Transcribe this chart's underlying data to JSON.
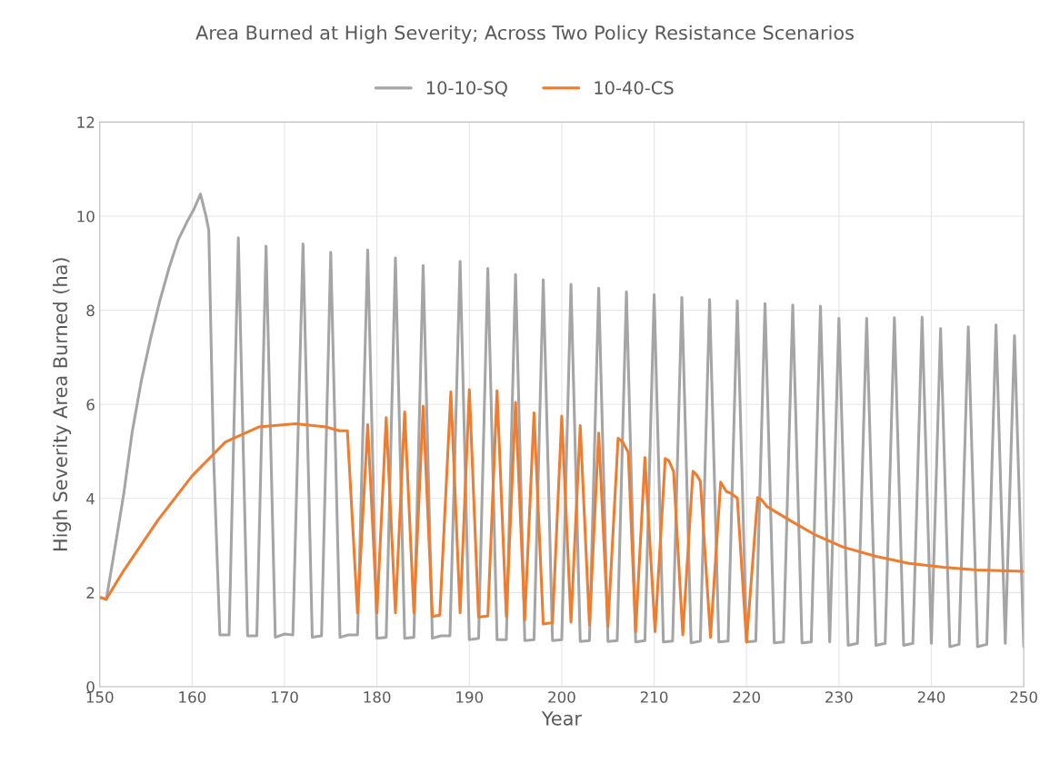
{
  "chart_data": {
    "type": "line",
    "title": "Area Burned at High Severity; Across Two Policy Resistance Scenarios",
    "xlabel": "Year",
    "ylabel": "High Severity Area Burned (ha)",
    "xlim": [
      150,
      250
    ],
    "xticks": [
      150,
      160,
      170,
      180,
      190,
      200,
      210,
      220,
      230,
      240,
      250
    ],
    "ylim": [
      0,
      12
    ],
    "yticks": [
      0,
      2,
      4,
      6,
      8,
      10,
      12
    ],
    "grid": true,
    "legend": "top",
    "marker": "none",
    "line_style": "solid",
    "series": [
      {
        "name": "10-10-SQ",
        "color": "#a5a5a5",
        "x": [
          150,
          150.7,
          151.6,
          152.6,
          153.5,
          154.5,
          155.5,
          156.5,
          157.5,
          158.5,
          159.5,
          160.2,
          160.9,
          161.5,
          161.8,
          162.3,
          163,
          164,
          165,
          166,
          167,
          168,
          169,
          170,
          170.9,
          172,
          173,
          174,
          175,
          176,
          176.9,
          177.9,
          179,
          180,
          181,
          182,
          183,
          184,
          185,
          186,
          186.9,
          187.9,
          189,
          190,
          191,
          192,
          193,
          194,
          195,
          196,
          197,
          198,
          199,
          200,
          201,
          202,
          203,
          204,
          205,
          206,
          207,
          208,
          209,
          210,
          211,
          212,
          213,
          214,
          215,
          216,
          217,
          218,
          219,
          220,
          221,
          222,
          223,
          224,
          225,
          226,
          227,
          228,
          229,
          230,
          231,
          232,
          233,
          234,
          235,
          236,
          237,
          238,
          239,
          240,
          241,
          242,
          243,
          244,
          245,
          246,
          247,
          248,
          249,
          250
        ],
        "values": [
          1.9,
          1.85,
          2.9,
          4.1,
          5.4,
          6.5,
          7.4,
          8.2,
          8.9,
          9.5,
          9.9,
          10.15,
          10.47,
          10.0,
          9.7,
          5.0,
          1.1,
          1.1,
          9.54,
          1.08,
          1.08,
          9.36,
          1.05,
          1.12,
          1.1,
          9.41,
          1.05,
          1.08,
          9.23,
          1.05,
          1.1,
          1.1,
          9.28,
          1.03,
          1.05,
          9.11,
          1.03,
          1.05,
          8.95,
          1.03,
          1.08,
          1.08,
          9.04,
          1.0,
          1.03,
          8.89,
          1.0,
          1.0,
          8.76,
          0.98,
          1.0,
          8.65,
          0.98,
          1.0,
          8.55,
          0.96,
          0.98,
          8.47,
          0.96,
          0.98,
          8.39,
          0.95,
          0.98,
          8.33,
          0.95,
          0.97,
          8.27,
          0.93,
          0.97,
          8.23,
          0.95,
          0.97,
          8.2,
          0.95,
          0.97,
          8.14,
          0.93,
          0.95,
          8.11,
          0.93,
          0.95,
          8.09,
          0.95,
          7.83,
          0.88,
          0.92,
          7.83,
          0.88,
          0.92,
          7.84,
          0.88,
          0.92,
          7.85,
          0.92,
          7.61,
          0.85,
          0.9,
          7.65,
          0.85,
          0.9,
          7.69,
          0.92,
          7.46,
          0.85
        ]
      },
      {
        "name": "10-40-CS",
        "color": "#ed7d31",
        "x": [
          150,
          150.7,
          152.6,
          156.3,
          160,
          163.6,
          167.2,
          171.2,
          174.5,
          175.9,
          176.8,
          177.9,
          179,
          180,
          181,
          182,
          183,
          184,
          185,
          186,
          186.8,
          188,
          189,
          190,
          191,
          192,
          193,
          194,
          195,
          196,
          197,
          198,
          199,
          200,
          201,
          202,
          203,
          204,
          205,
          206.1,
          206.6,
          207.2,
          208,
          209,
          210.1,
          211.2,
          211.6,
          212.1,
          213.1,
          214.2,
          214.6,
          215,
          216.1,
          217.2,
          217.8,
          218.2,
          219,
          220,
          221.2,
          221.6,
          222.2,
          224.9,
          227.5,
          230.4,
          234,
          237.6,
          241.3,
          244.9,
          250
        ],
        "values": [
          1.9,
          1.86,
          2.47,
          3.54,
          4.48,
          5.2,
          5.52,
          5.59,
          5.52,
          5.44,
          5.44,
          1.57,
          5.57,
          1.57,
          5.72,
          1.57,
          5.84,
          1.57,
          5.96,
          1.49,
          1.52,
          6.27,
          1.57,
          6.31,
          1.48,
          1.5,
          6.29,
          1.49,
          6.04,
          1.42,
          5.82,
          1.33,
          1.36,
          5.75,
          1.37,
          5.55,
          1.31,
          5.39,
          1.28,
          5.28,
          5.2,
          4.98,
          1.17,
          4.87,
          1.17,
          4.85,
          4.8,
          4.58,
          1.1,
          4.58,
          4.5,
          4.37,
          1.05,
          4.35,
          4.15,
          4.12,
          4.01,
          0.95,
          4.02,
          3.98,
          3.83,
          3.51,
          3.22,
          2.97,
          2.77,
          2.62,
          2.54,
          2.48,
          2.45
        ]
      }
    ]
  }
}
